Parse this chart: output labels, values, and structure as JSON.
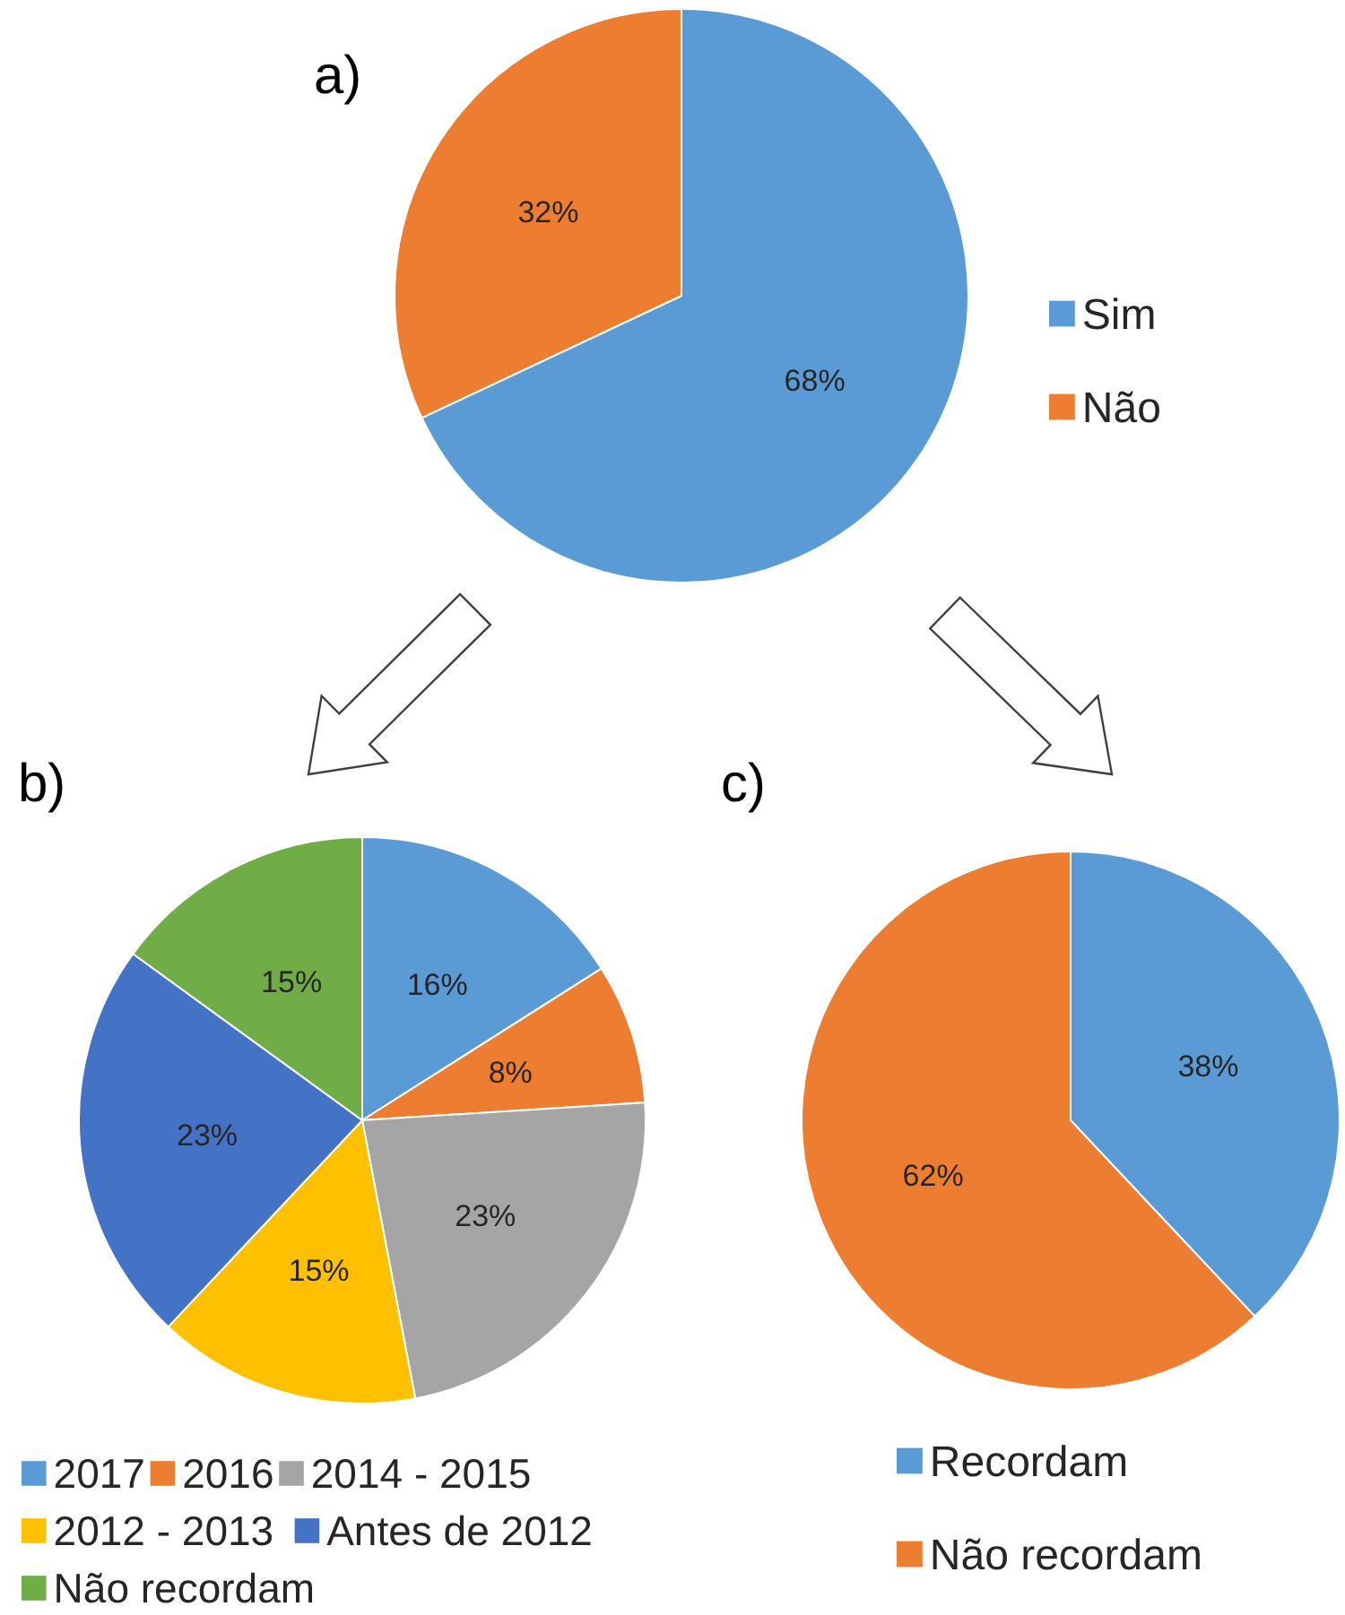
{
  "chart_data": [
    {
      "type": "pie",
      "title": "a)",
      "categories": [
        "Sim",
        "Não"
      ],
      "values": [
        68,
        32
      ],
      "value_labels": [
        "68%",
        "32%"
      ],
      "colors": [
        "#5b9bd5",
        "#ed7d31"
      ],
      "legend": "right"
    },
    {
      "type": "pie",
      "title": "b)",
      "categories": [
        "2017",
        "2016",
        "2014 - 2015",
        "2012 - 2013",
        "Antes de 2012",
        "Não recordam"
      ],
      "values": [
        16,
        8,
        23,
        15,
        23,
        15
      ],
      "value_labels": [
        "16%",
        "8%",
        "23%",
        "15%",
        "23%",
        "15%"
      ],
      "colors": [
        "#5b9bd5",
        "#ed7d31",
        "#a5a5a5",
        "#ffc000",
        "#4472c4",
        "#70ad47"
      ],
      "legend": "bottom"
    },
    {
      "type": "pie",
      "title": "c)",
      "categories": [
        "Recordam",
        "Não recordam"
      ],
      "values": [
        38,
        62
      ],
      "value_labels": [
        "38%",
        "62%"
      ],
      "colors": [
        "#5b9bd5",
        "#ed7d31"
      ],
      "legend": "bottom"
    }
  ]
}
